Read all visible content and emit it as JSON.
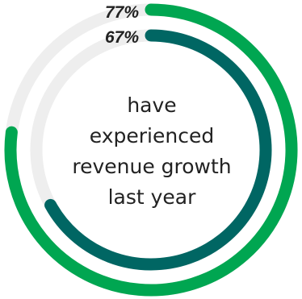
{
  "chart_data": {
    "type": "pie",
    "title": "",
    "series": [
      {
        "value": 77,
        "label": "77%",
        "color": "#00a651"
      },
      {
        "value": 67,
        "label": "67%",
        "color": "#006663"
      }
    ],
    "track_color": "#eeeeee",
    "center_text": [
      "have",
      "experienced",
      "revenue growth",
      "last year"
    ]
  }
}
